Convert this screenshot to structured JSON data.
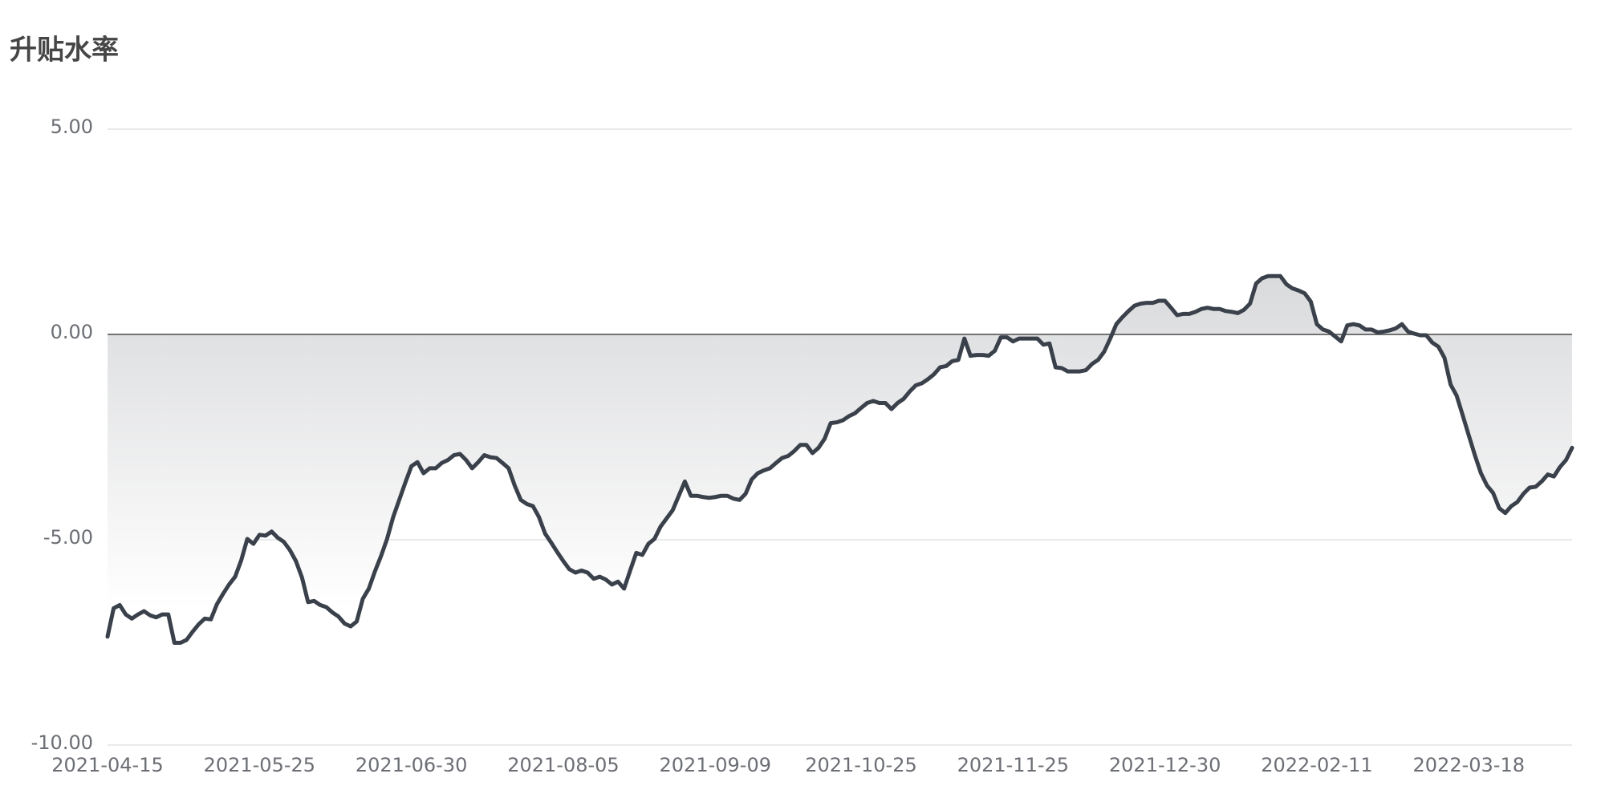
{
  "chart_data": {
    "type": "area",
    "title": "升贴水率",
    "categories": [
      "2021-04-15",
      null,
      null,
      null,
      null,
      null,
      null,
      null,
      null,
      null,
      null,
      null,
      null,
      null,
      null,
      null,
      null,
      null,
      null,
      null,
      null,
      null,
      null,
      null,
      null,
      "2021-05-25",
      null,
      null,
      null,
      null,
      null,
      null,
      null,
      null,
      null,
      null,
      null,
      null,
      null,
      null,
      null,
      null,
      null,
      null,
      null,
      null,
      null,
      null,
      null,
      null,
      "2021-06-30",
      null,
      null,
      null,
      null,
      null,
      null,
      null,
      null,
      null,
      null,
      null,
      null,
      null,
      null,
      null,
      null,
      null,
      null,
      null,
      null,
      null,
      null,
      null,
      null,
      "2021-08-05",
      null,
      null,
      null,
      null,
      null,
      null,
      null,
      null,
      null,
      null,
      null,
      null,
      null,
      null,
      null,
      null,
      null,
      null,
      null,
      null,
      null,
      null,
      null,
      null,
      "2021-09-09",
      null,
      null,
      null,
      null,
      null,
      null,
      null,
      null,
      null,
      null,
      null,
      null,
      null,
      null,
      null,
      null,
      null,
      null,
      null,
      null,
      null,
      null,
      null,
      "2021-10-25",
      null,
      null,
      null,
      null,
      null,
      null,
      null,
      null,
      null,
      null,
      null,
      null,
      null,
      null,
      null,
      null,
      null,
      null,
      null,
      null,
      null,
      null,
      null,
      null,
      "2021-11-25",
      null,
      null,
      null,
      null,
      null,
      null,
      null,
      null,
      null,
      null,
      null,
      null,
      null,
      null,
      null,
      null,
      null,
      null,
      null,
      null,
      null,
      null,
      null,
      null,
      "2021-12-30",
      null,
      null,
      null,
      null,
      null,
      null,
      null,
      null,
      null,
      null,
      null,
      null,
      null,
      null,
      null,
      null,
      null,
      null,
      null,
      null,
      null,
      null,
      null,
      null,
      "2022-02-11",
      null,
      null,
      null,
      null,
      null,
      null,
      null,
      null,
      null,
      null,
      null,
      null,
      null,
      null,
      null,
      null,
      null,
      null,
      null,
      null,
      null,
      null,
      null,
      null,
      "2022-03-18",
      null,
      null,
      null,
      null,
      null,
      null,
      null,
      null,
      null,
      null,
      null,
      null,
      null,
      null,
      null,
      null,
      null
    ],
    "values": [
      -7.36,
      -6.67,
      -6.59,
      -6.82,
      -6.92,
      -6.82,
      -6.74,
      -6.84,
      -6.89,
      -6.82,
      -6.82,
      -7.51,
      -7.51,
      -7.44,
      -7.24,
      -7.06,
      -6.92,
      -6.94,
      -6.57,
      -6.32,
      -6.09,
      -5.9,
      -5.5,
      -4.98,
      -5.1,
      -4.88,
      -4.9,
      -4.8,
      -4.95,
      -5.05,
      -5.25,
      -5.52,
      -5.92,
      -6.52,
      -6.49,
      -6.59,
      -6.64,
      -6.77,
      -6.87,
      -7.04,
      -7.11,
      -6.99,
      -6.44,
      -6.19,
      -5.77,
      -5.4,
      -4.98,
      -4.45,
      -4.03,
      -3.61,
      -3.21,
      -3.11,
      -3.38,
      -3.26,
      -3.26,
      -3.13,
      -3.06,
      -2.94,
      -2.91,
      -3.06,
      -3.26,
      -3.11,
      -2.94,
      -2.99,
      -3.01,
      -3.13,
      -3.26,
      -3.68,
      -4.03,
      -4.13,
      -4.18,
      -4.45,
      -4.85,
      -5.07,
      -5.3,
      -5.52,
      -5.72,
      -5.8,
      -5.75,
      -5.8,
      -5.95,
      -5.9,
      -5.97,
      -6.09,
      -6.02,
      -6.19,
      -5.75,
      -5.32,
      -5.37,
      -5.1,
      -4.98,
      -4.68,
      -4.48,
      -4.28,
      -3.93,
      -3.58,
      -3.93,
      -3.93,
      -3.96,
      -3.98,
      -3.96,
      -3.93,
      -3.93,
      -4.0,
      -4.03,
      -3.88,
      -3.53,
      -3.38,
      -3.31,
      -3.26,
      -3.13,
      -3.01,
      -2.96,
      -2.84,
      -2.69,
      -2.69,
      -2.89,
      -2.76,
      -2.54,
      -2.16,
      -2.14,
      -2.09,
      -1.99,
      -1.92,
      -1.79,
      -1.67,
      -1.62,
      -1.67,
      -1.67,
      -1.82,
      -1.67,
      -1.57,
      -1.39,
      -1.24,
      -1.19,
      -1.09,
      -0.97,
      -0.8,
      -0.77,
      -0.65,
      -0.62,
      -0.1,
      -0.52,
      -0.5,
      -0.5,
      -0.52,
      -0.4,
      -0.07,
      -0.07,
      -0.17,
      -0.1,
      -0.1,
      -0.1,
      -0.1,
      -0.25,
      -0.22,
      -0.8,
      -0.82,
      -0.9,
      -0.9,
      -0.9,
      -0.87,
      -0.72,
      -0.62,
      -0.42,
      -0.1,
      0.25,
      0.42,
      0.57,
      0.7,
      0.75,
      0.77,
      0.77,
      0.82,
      0.82,
      0.65,
      0.47,
      0.5,
      0.5,
      0.55,
      0.62,
      0.65,
      0.62,
      0.62,
      0.57,
      0.55,
      0.52,
      0.6,
      0.75,
      1.24,
      1.37,
      1.42,
      1.42,
      1.42,
      1.22,
      1.12,
      1.07,
      1.0,
      0.8,
      0.25,
      0.12,
      0.07,
      -0.05,
      -0.17,
      0.22,
      0.25,
      0.22,
      0.12,
      0.12,
      0.05,
      0.07,
      0.1,
      0.15,
      0.25,
      0.07,
      0.02,
      -0.02,
      -0.02,
      -0.2,
      -0.3,
      -0.57,
      -1.22,
      -1.49,
      -1.97,
      -2.46,
      -2.94,
      -3.38,
      -3.68,
      -3.86,
      -4.23,
      -4.35,
      -4.18,
      -4.08,
      -3.88,
      -3.73,
      -3.71,
      -3.58,
      -3.41,
      -3.46,
      -3.23,
      -3.06,
      -2.76
    ],
    "color": "#3a414b",
    "ylim": [
      -10,
      5
    ],
    "yticks": [
      {
        "value": 5,
        "label": "5.00"
      },
      {
        "value": 0,
        "label": "0.00"
      },
      {
        "value": -5,
        "label": "-5.00"
      },
      {
        "value": -10,
        "label": "-10.00"
      }
    ],
    "grid": true
  }
}
